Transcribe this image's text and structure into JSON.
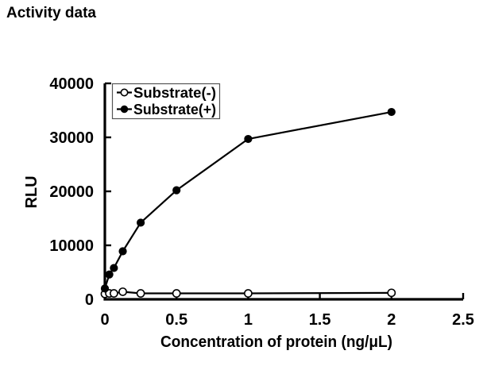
{
  "chart_data": {
    "type": "line",
    "title": "Activity data",
    "xlabel": "Concentration of protein (ng/μL)",
    "ylabel": "RLU",
    "xlim": [
      0,
      2.5
    ],
    "ylim": [
      0,
      40000
    ],
    "xticks": [
      0,
      0.5,
      1,
      1.5,
      2,
      2.5
    ],
    "xtick_labels": [
      "0",
      "0.5",
      "1",
      "1.5",
      "2",
      "2.5"
    ],
    "yticks": [
      0,
      10000,
      20000,
      30000,
      40000
    ],
    "ytick_labels": [
      "0",
      "10000",
      "20000",
      "30000",
      "40000"
    ],
    "grid": false,
    "x": [
      0,
      0.031,
      0.063,
      0.125,
      0.25,
      0.5,
      1,
      2
    ],
    "series": [
      {
        "name": "Substrate(-)",
        "marker": "open-circle",
        "color": "#000000",
        "values": [
          1000,
          1100,
          1100,
          1400,
          1100,
          1100,
          1100,
          1200
        ]
      },
      {
        "name": "Substrate(+)",
        "marker": "filled-circle",
        "color": "#000000",
        "values": [
          2000,
          4600,
          5800,
          8900,
          14200,
          20200,
          29700,
          34700
        ]
      }
    ],
    "legend": {
      "position": "top-left-inside",
      "entries": [
        "Substrate(-)",
        "Substrate(+)"
      ]
    },
    "colors": {
      "foreground": "#000000",
      "background": "#ffffff",
      "legend_border": "#555555"
    }
  }
}
